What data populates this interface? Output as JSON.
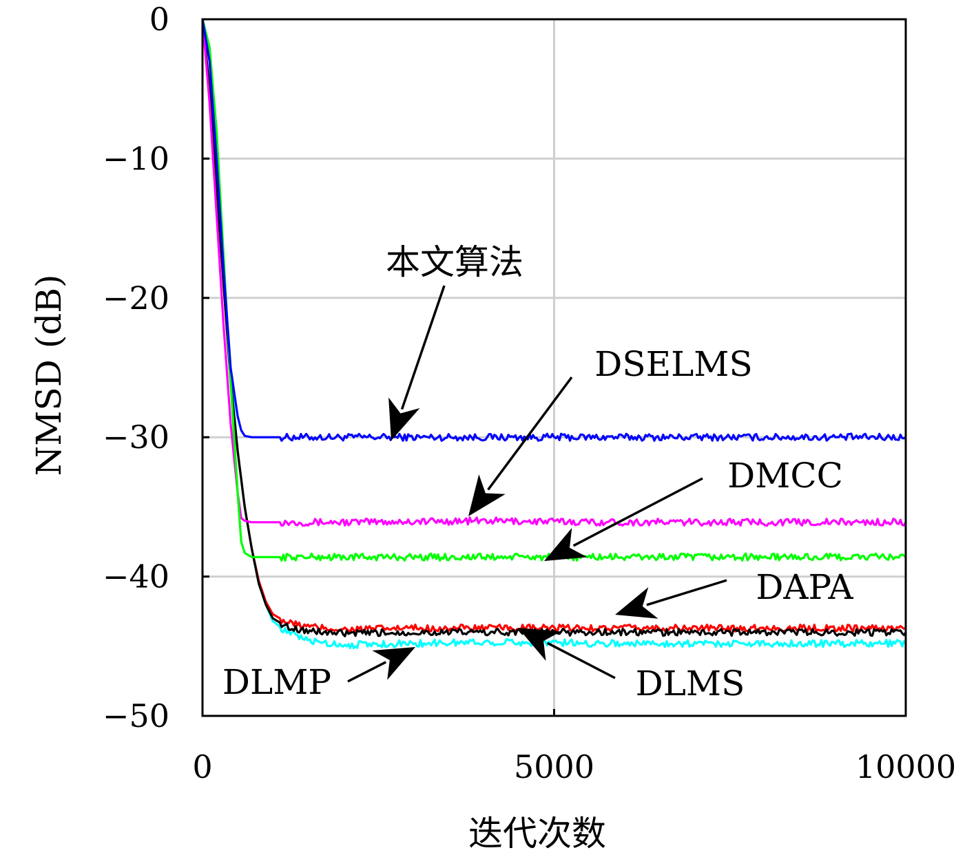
{
  "chart_data": {
    "type": "line",
    "title": "",
    "xlabel": "迭代次数",
    "ylabel": "NMSD (dB)",
    "xlim": [
      0,
      10000
    ],
    "ylim": [
      -50,
      0
    ],
    "xticks": [
      0,
      5000,
      10000
    ],
    "xtick_labels": [
      "0",
      "5000",
      "10000"
    ],
    "yticks": [
      0,
      -10,
      -20,
      -30,
      -40,
      -50
    ],
    "ytick_labels": [
      "0",
      "−10",
      "−20",
      "−30",
      "−40",
      "−50"
    ],
    "grid": true,
    "legend": "none (series labeled by arrow annotations)",
    "series": [
      {
        "name": "本文算法",
        "color": "#0000ff",
        "x": [
          0,
          100,
          200,
          300,
          400,
          500,
          550,
          600,
          700,
          1000,
          2000,
          4000,
          6000,
          8000,
          10000
        ],
        "y": [
          0,
          -3,
          -10,
          -18,
          -25,
          -28.5,
          -29.5,
          -29.9,
          -30.0,
          -30.0,
          -30.0,
          -30.0,
          -30.0,
          -30.0,
          -30.0
        ]
      },
      {
        "name": "DSELMS",
        "color": "#ff00ff",
        "x": [
          0,
          100,
          200,
          300,
          400,
          500,
          550,
          600,
          700,
          1000,
          2000,
          4000,
          6000,
          8000,
          10000
        ],
        "y": [
          0,
          -6,
          -14,
          -22,
          -29,
          -34,
          -35.8,
          -36.0,
          -36.1,
          -36.1,
          -36.1,
          -36.0,
          -36.1,
          -36.1,
          -36.1
        ]
      },
      {
        "name": "DMCC",
        "color": "#00ff00",
        "x": [
          0,
          100,
          200,
          300,
          400,
          500,
          550,
          600,
          700,
          1000,
          2000,
          4000,
          6000,
          8000,
          10000
        ],
        "y": [
          0,
          -2,
          -8,
          -17,
          -26,
          -34,
          -37.5,
          -38.3,
          -38.6,
          -38.6,
          -38.6,
          -38.6,
          -38.6,
          -38.6,
          -38.6
        ]
      },
      {
        "name": "DAPA",
        "color": "#ff0000",
        "x": [
          0,
          100,
          200,
          300,
          400,
          500,
          600,
          700,
          800,
          900,
          1000,
          1200,
          1500,
          2000,
          3000,
          4000,
          6000,
          8000,
          10000
        ],
        "y": [
          0,
          -5,
          -12,
          -19,
          -26,
          -31,
          -35,
          -38,
          -40.3,
          -41.8,
          -42.7,
          -43.3,
          -43.6,
          -43.8,
          -43.7,
          -43.7,
          -43.7,
          -43.7,
          -43.7
        ]
      },
      {
        "name": "DLMS",
        "color": "#000000",
        "x": [
          0,
          100,
          200,
          300,
          400,
          500,
          600,
          700,
          800,
          900,
          1000,
          1200,
          1500,
          2000,
          3000,
          4000,
          6000,
          8000,
          10000
        ],
        "y": [
          0,
          -5,
          -12,
          -19,
          -26,
          -31,
          -35,
          -38,
          -40.5,
          -42,
          -43,
          -43.6,
          -43.9,
          -44.1,
          -44.0,
          -44.0,
          -44.0,
          -44.0,
          -44.0
        ]
      },
      {
        "name": "DLMP",
        "color": "#00ffff",
        "x": [
          0,
          100,
          200,
          300,
          400,
          500,
          600,
          700,
          800,
          900,
          1000,
          1200,
          1500,
          2000,
          3000,
          4000,
          6000,
          8000,
          10000
        ],
        "y": [
          0,
          -5,
          -11,
          -18,
          -25,
          -31,
          -35,
          -38,
          -40.5,
          -42,
          -43.2,
          -44.0,
          -44.6,
          -44.9,
          -44.8,
          -44.7,
          -44.8,
          -44.8,
          -44.8
        ]
      }
    ],
    "annotations": [
      {
        "text": "本文算法",
        "target_series": "本文算法"
      },
      {
        "text": "DSELMS",
        "target_series": "DSELMS"
      },
      {
        "text": "DMCC",
        "target_series": "DMCC"
      },
      {
        "text": "DAPA",
        "target_series": "DAPA"
      },
      {
        "text": "DLMS",
        "target_series": "DLMS"
      },
      {
        "text": "DLMP",
        "target_series": "DLMP"
      }
    ]
  }
}
